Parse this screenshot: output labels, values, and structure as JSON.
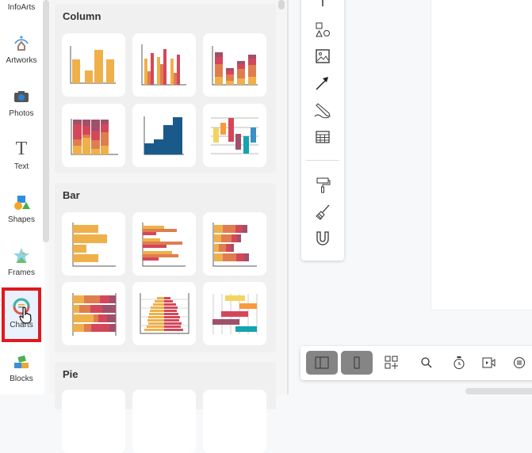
{
  "sidebar": {
    "items": [
      {
        "label": "InfoArts",
        "icon": "infoarts-icon"
      },
      {
        "label": "Artworks",
        "icon": "artworks-icon"
      },
      {
        "label": "Photos",
        "icon": "camera-icon"
      },
      {
        "label": "Text",
        "icon": "text-icon"
      },
      {
        "label": "Shapes",
        "icon": "shapes-icon"
      },
      {
        "label": "Frames",
        "icon": "frames-icon"
      },
      {
        "label": "Charts",
        "icon": "charts-icon",
        "active": true
      },
      {
        "label": "Blocks",
        "icon": "blocks-icon"
      }
    ]
  },
  "panel": {
    "sections": [
      {
        "title": "Column",
        "templates": [
          "column-basic",
          "column-clustered",
          "column-stacked",
          "column-stacked-100",
          "column-histogram",
          "column-floating"
        ]
      },
      {
        "title": "Bar",
        "templates": [
          "bar-basic",
          "bar-clustered",
          "bar-stacked",
          "bar-stacked-100",
          "bar-population-pyramid",
          "bar-gantt"
        ]
      },
      {
        "title": "Pie",
        "templates": []
      }
    ]
  },
  "toolbar": {
    "tools": [
      "line-icon",
      "shapes-icon",
      "image-icon",
      "arrow-icon",
      "pen-icon",
      "table-icon",
      "format-painter-icon",
      "brush-icon",
      "magnet-icon"
    ]
  },
  "bottom_toolbar": {
    "buttons": [
      "panel-layout-icon",
      "sidebar-toggle-icon",
      "add-widget-icon",
      "search-icon",
      "timer-icon",
      "video-icon",
      "comment-icon"
    ]
  },
  "colors": {
    "accent_yellow": "#efb04a",
    "accent_orange": "#e07d4f",
    "accent_red": "#d4475a",
    "accent_maroon": "#a0506a",
    "accent_blue": "#1a5a8a",
    "highlight_box": "#e0191e"
  }
}
